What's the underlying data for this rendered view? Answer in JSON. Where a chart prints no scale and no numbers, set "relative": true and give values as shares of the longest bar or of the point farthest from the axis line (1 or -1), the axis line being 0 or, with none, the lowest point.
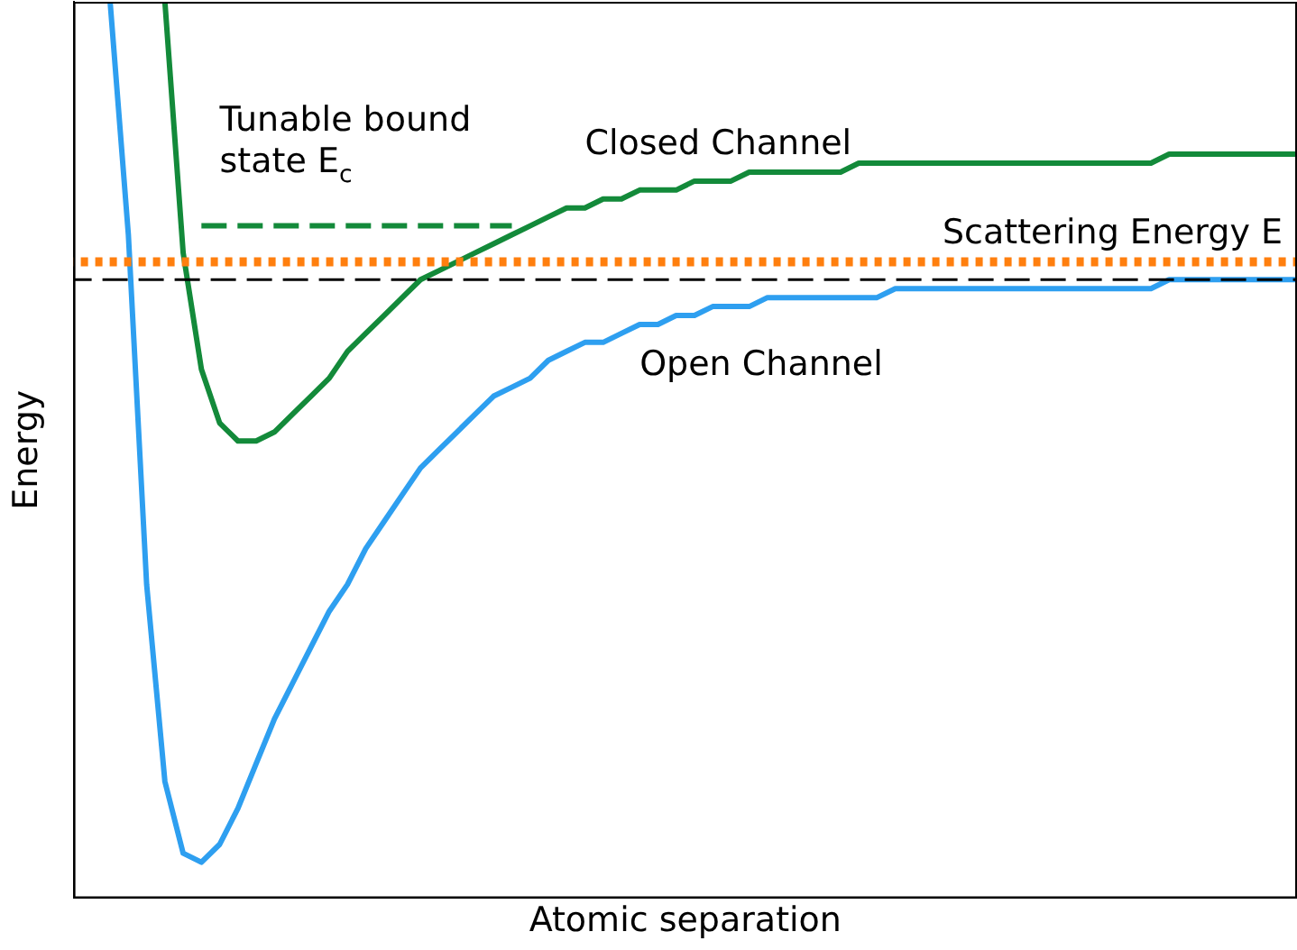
{
  "chart_data": {
    "type": "line",
    "relative": true,
    "xlabel": "Atomic separation",
    "ylabel": "Energy",
    "legend": false,
    "tick_labels": false,
    "grid": false,
    "categories": [
      null,
      null,
      null,
      null,
      null,
      null,
      null,
      null,
      null,
      null,
      null,
      null,
      null,
      null,
      null,
      null,
      null,
      null,
      null,
      null,
      null,
      null,
      null,
      null,
      null,
      null,
      null,
      null,
      null,
      null,
      null,
      null,
      null,
      null,
      null,
      null,
      null,
      null,
      null,
      null,
      null,
      null,
      null,
      null,
      null,
      null,
      null,
      null,
      null,
      null,
      null,
      null,
      null,
      null,
      null,
      null,
      null,
      null,
      null,
      null,
      null,
      null,
      null,
      null,
      null,
      null,
      null,
      null
    ],
    "series": [
      {
        "name": "Open Channel",
        "color": "#2e9ff0",
        "values": [
          null,
          null,
          1.0,
          0.74,
          0.35,
          0.13,
          0.05,
          0.04,
          0.06,
          0.1,
          0.15,
          0.2,
          0.24,
          0.28,
          0.32,
          0.35,
          0.39,
          0.42,
          0.45,
          0.48,
          0.5,
          0.52,
          0.54,
          0.56,
          0.57,
          0.58,
          0.6,
          0.61,
          0.62,
          0.62,
          0.63,
          0.64,
          0.64,
          0.65,
          0.65,
          0.66,
          0.66,
          0.66,
          0.67,
          0.67,
          0.67,
          0.67,
          0.67,
          0.67,
          0.67,
          0.68,
          0.68,
          0.68,
          0.68,
          0.68,
          0.68,
          0.68,
          0.68,
          0.68,
          0.68,
          0.68,
          0.68,
          0.68,
          0.68,
          0.68,
          0.69,
          0.69,
          0.69,
          0.69,
          0.69,
          0.69,
          0.69,
          0.69
        ]
      },
      {
        "name": "Closed Channel",
        "color": "#138a3a",
        "values": [
          null,
          null,
          null,
          null,
          null,
          1.0,
          0.72,
          0.59,
          0.53,
          0.51,
          0.51,
          0.52,
          0.54,
          0.56,
          0.58,
          0.61,
          0.63,
          0.65,
          0.67,
          0.69,
          0.7,
          0.71,
          0.72,
          0.73,
          0.74,
          0.75,
          0.76,
          0.77,
          0.77,
          0.78,
          0.78,
          0.79,
          0.79,
          0.79,
          0.8,
          0.8,
          0.8,
          0.81,
          0.81,
          0.81,
          0.81,
          0.81,
          0.81,
          0.82,
          0.82,
          0.82,
          0.82,
          0.82,
          0.82,
          0.82,
          0.82,
          0.82,
          0.82,
          0.82,
          0.82,
          0.82,
          0.82,
          0.82,
          0.82,
          0.82,
          0.83,
          0.83,
          0.83,
          0.83,
          0.83,
          0.83,
          0.83,
          0.83
        ]
      },
      {
        "name": "Tunable bound state E$_{c}$",
        "color": "#138a3a",
        "line_style": "dashed",
        "values": [
          null,
          null,
          null,
          null,
          null,
          null,
          null,
          0.75,
          0.75,
          0.75,
          0.75,
          0.75,
          0.75,
          0.75,
          0.75,
          0.75,
          0.75,
          0.75,
          0.75,
          0.75,
          0.75,
          0.75,
          0.75,
          0.75,
          0.75,
          null,
          null,
          null,
          null,
          null,
          null,
          null,
          null,
          null,
          null,
          null,
          null,
          null,
          null,
          null,
          null,
          null,
          null,
          null,
          null,
          null,
          null,
          null,
          null,
          null,
          null,
          null,
          null,
          null,
          null,
          null,
          null,
          null,
          null,
          null,
          null,
          null,
          null,
          null,
          null,
          null,
          null,
          null
        ]
      }
    ],
    "ref_lines": [
      {
        "axis": "y",
        "value": 0.69,
        "color": "#000000",
        "line_style": "dashed"
      },
      {
        "axis": "y",
        "value": 0.71,
        "label": "Scattering Energy E",
        "color": "#ff7f0e",
        "line_style": "dotted"
      }
    ]
  }
}
